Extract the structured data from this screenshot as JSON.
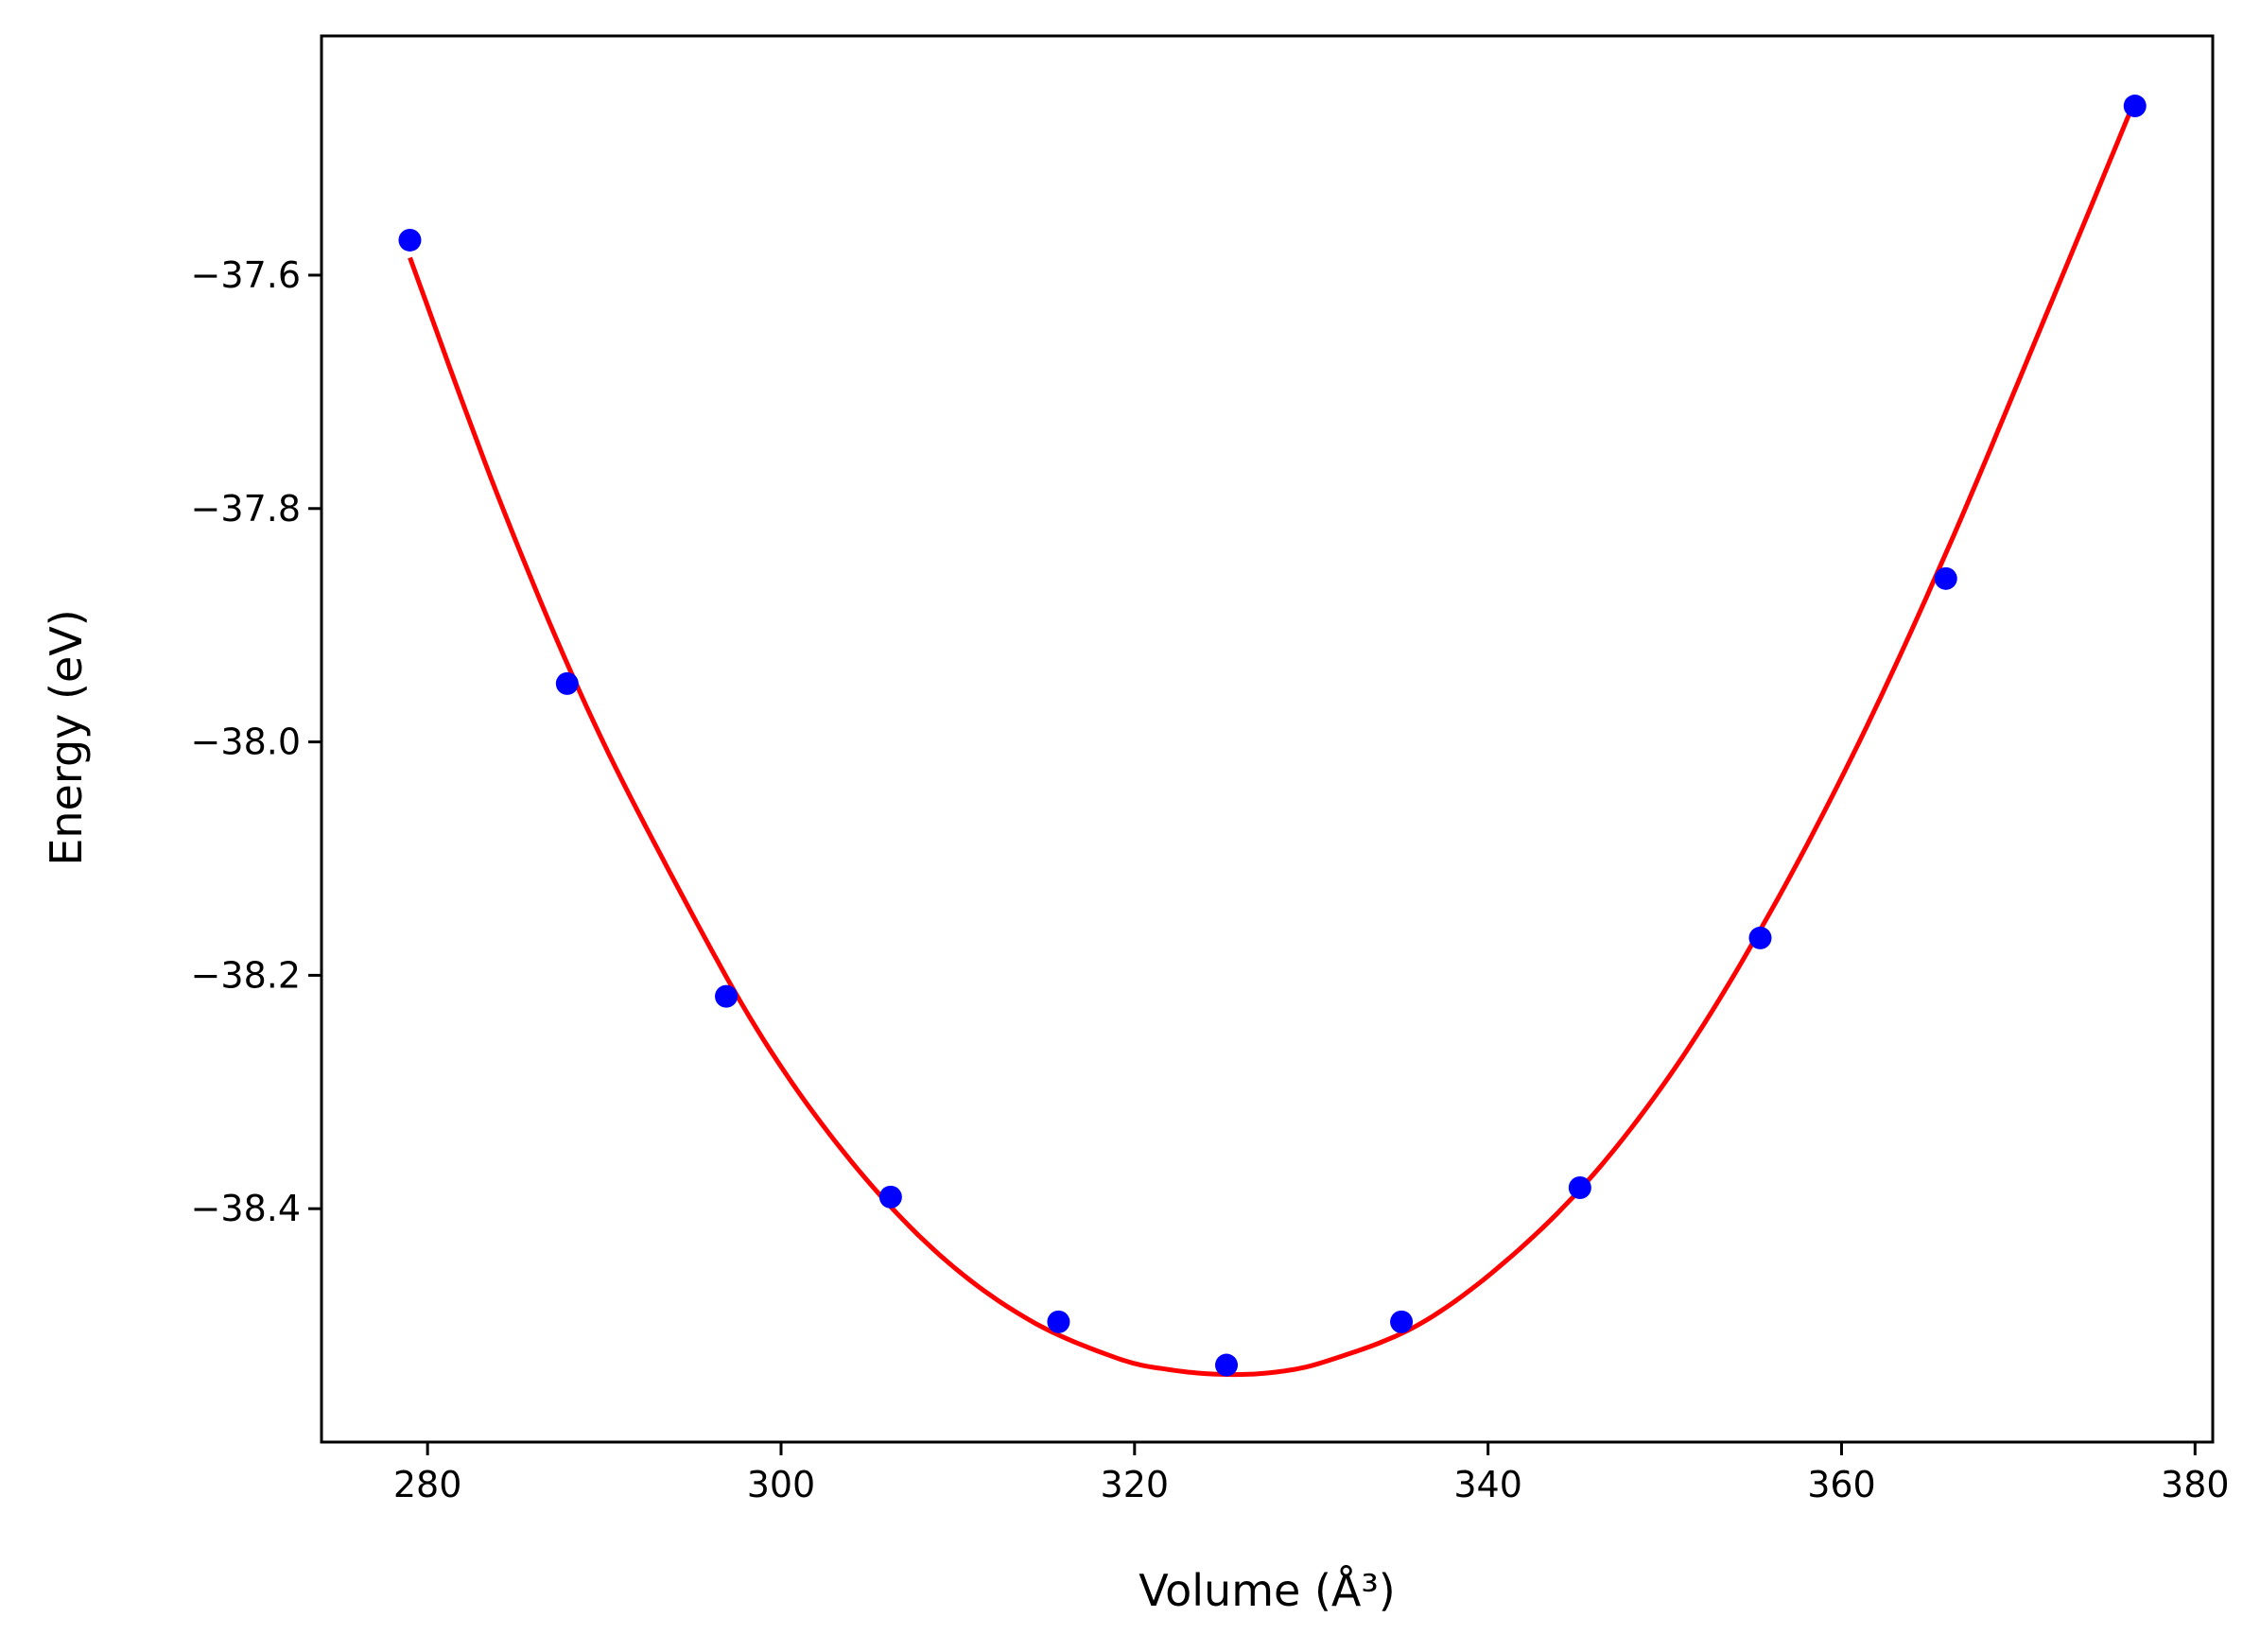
{
  "chart_data": {
    "type": "scatter",
    "title": "",
    "xlabel": "Volume (Å³)",
    "ylabel": "Energy (eV)",
    "xlim": [
      274,
      381
    ],
    "ylim": [
      -38.6,
      -37.395
    ],
    "x_ticks": [
      280,
      300,
      320,
      340,
      360,
      380
    ],
    "y_ticks": [
      -37.6,
      -37.8,
      -38.0,
      -38.2,
      -38.4
    ],
    "x_tick_labels": [
      "280",
      "300",
      "320",
      "340",
      "360",
      "380"
    ],
    "y_tick_labels": [
      "−37.6",
      "−37.8",
      "−38.0",
      "−38.2",
      "−38.4"
    ],
    "grid": false,
    "legend": "none",
    "series": [
      {
        "kind": "points",
        "color": "#0000ff",
        "x": [
          279.0,
          287.9,
          296.9,
          306.2,
          315.7,
          325.2,
          335.1,
          345.2,
          355.4,
          365.9,
          376.6
        ],
        "y": [
          -37.57,
          -37.95,
          -38.218,
          -38.39,
          -38.497,
          -38.534,
          -38.497,
          -38.382,
          -38.168,
          -37.86,
          -37.455
        ]
      },
      {
        "kind": "fit-curve",
        "color": "#ff0000",
        "x": [
          279.0,
          284.0,
          289.0,
          294.0,
          299.0,
          304.0,
          309.0,
          314.0,
          319.0,
          322.0,
          325.0,
          328.0,
          331.0,
          336.0,
          341.0,
          346.0,
          351.0,
          356.0,
          361.0,
          366.0,
          371.0,
          376.6
        ],
        "y": [
          -37.585,
          -37.79,
          -37.97,
          -38.12,
          -38.255,
          -38.36,
          -38.44,
          -38.495,
          -38.528,
          -38.538,
          -38.542,
          -38.54,
          -38.53,
          -38.5,
          -38.445,
          -38.37,
          -38.27,
          -38.145,
          -38.0,
          -37.835,
          -37.655,
          -37.45
        ]
      }
    ]
  }
}
